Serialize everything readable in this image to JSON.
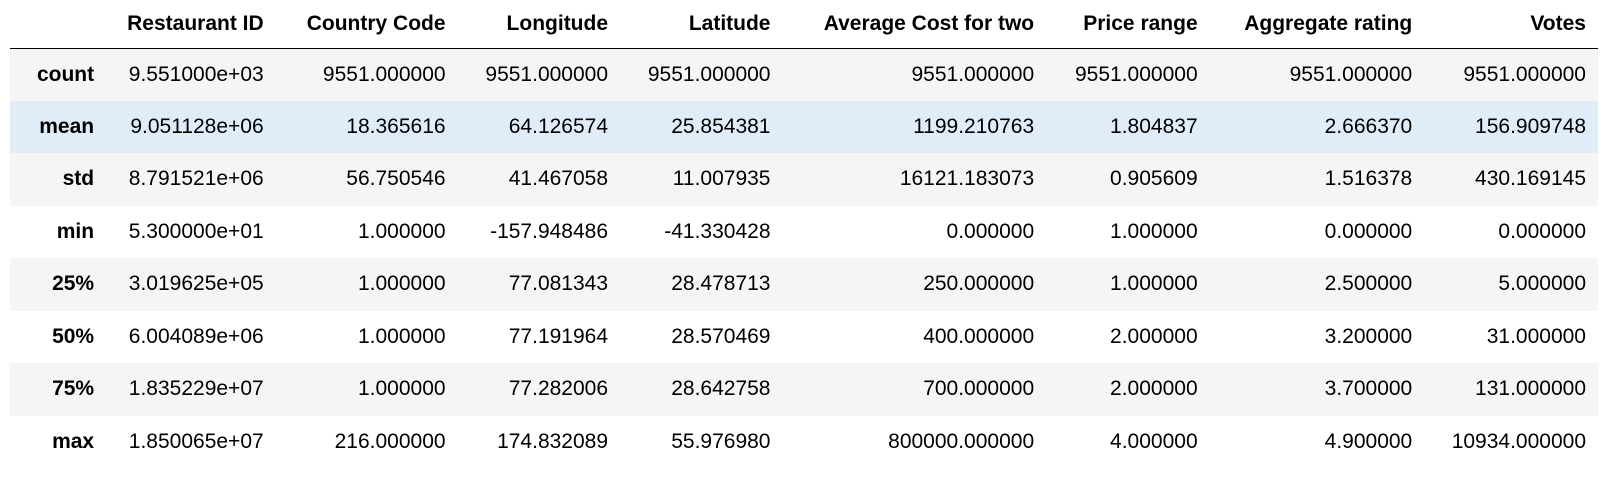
{
  "table": {
    "index_header": "",
    "columns": [
      "Restaurant ID",
      "Country Code",
      "Longitude",
      "Latitude",
      "Average Cost for two",
      "Price range",
      "Aggregate rating",
      "Votes"
    ],
    "rows": [
      {
        "label": "count",
        "values": [
          "9.551000e+03",
          "9551.000000",
          "9551.000000",
          "9551.000000",
          "9551.000000",
          "9551.000000",
          "9551.000000",
          "9551.000000"
        ]
      },
      {
        "label": "mean",
        "values": [
          "9.051128e+06",
          "18.365616",
          "64.126574",
          "25.854381",
          "1199.210763",
          "1.804837",
          "2.666370",
          "156.909748"
        ]
      },
      {
        "label": "std",
        "values": [
          "8.791521e+06",
          "56.750546",
          "41.467058",
          "11.007935",
          "16121.183073",
          "0.905609",
          "1.516378",
          "430.169145"
        ]
      },
      {
        "label": "min",
        "values": [
          "5.300000e+01",
          "1.000000",
          "-157.948486",
          "-41.330428",
          "0.000000",
          "1.000000",
          "0.000000",
          "0.000000"
        ]
      },
      {
        "label": "25%",
        "values": [
          "3.019625e+05",
          "1.000000",
          "77.081343",
          "28.478713",
          "250.000000",
          "1.000000",
          "2.500000",
          "5.000000"
        ]
      },
      {
        "label": "50%",
        "values": [
          "6.004089e+06",
          "1.000000",
          "77.191964",
          "28.570469",
          "400.000000",
          "2.000000",
          "3.200000",
          "31.000000"
        ]
      },
      {
        "label": "75%",
        "values": [
          "1.835229e+07",
          "1.000000",
          "77.282006",
          "28.642758",
          "700.000000",
          "2.000000",
          "3.700000",
          "131.000000"
        ]
      },
      {
        "label": "max",
        "values": [
          "1.850065e+07",
          "216.000000",
          "174.832089",
          "55.976980",
          "800000.000000",
          "4.000000",
          "4.900000",
          "10934.000000"
        ]
      }
    ],
    "highlighted_row": "mean"
  },
  "colors": {
    "stripe": "#f5f5f5",
    "hover_highlight": "#e1ecf9",
    "header_rule": "#000000"
  }
}
